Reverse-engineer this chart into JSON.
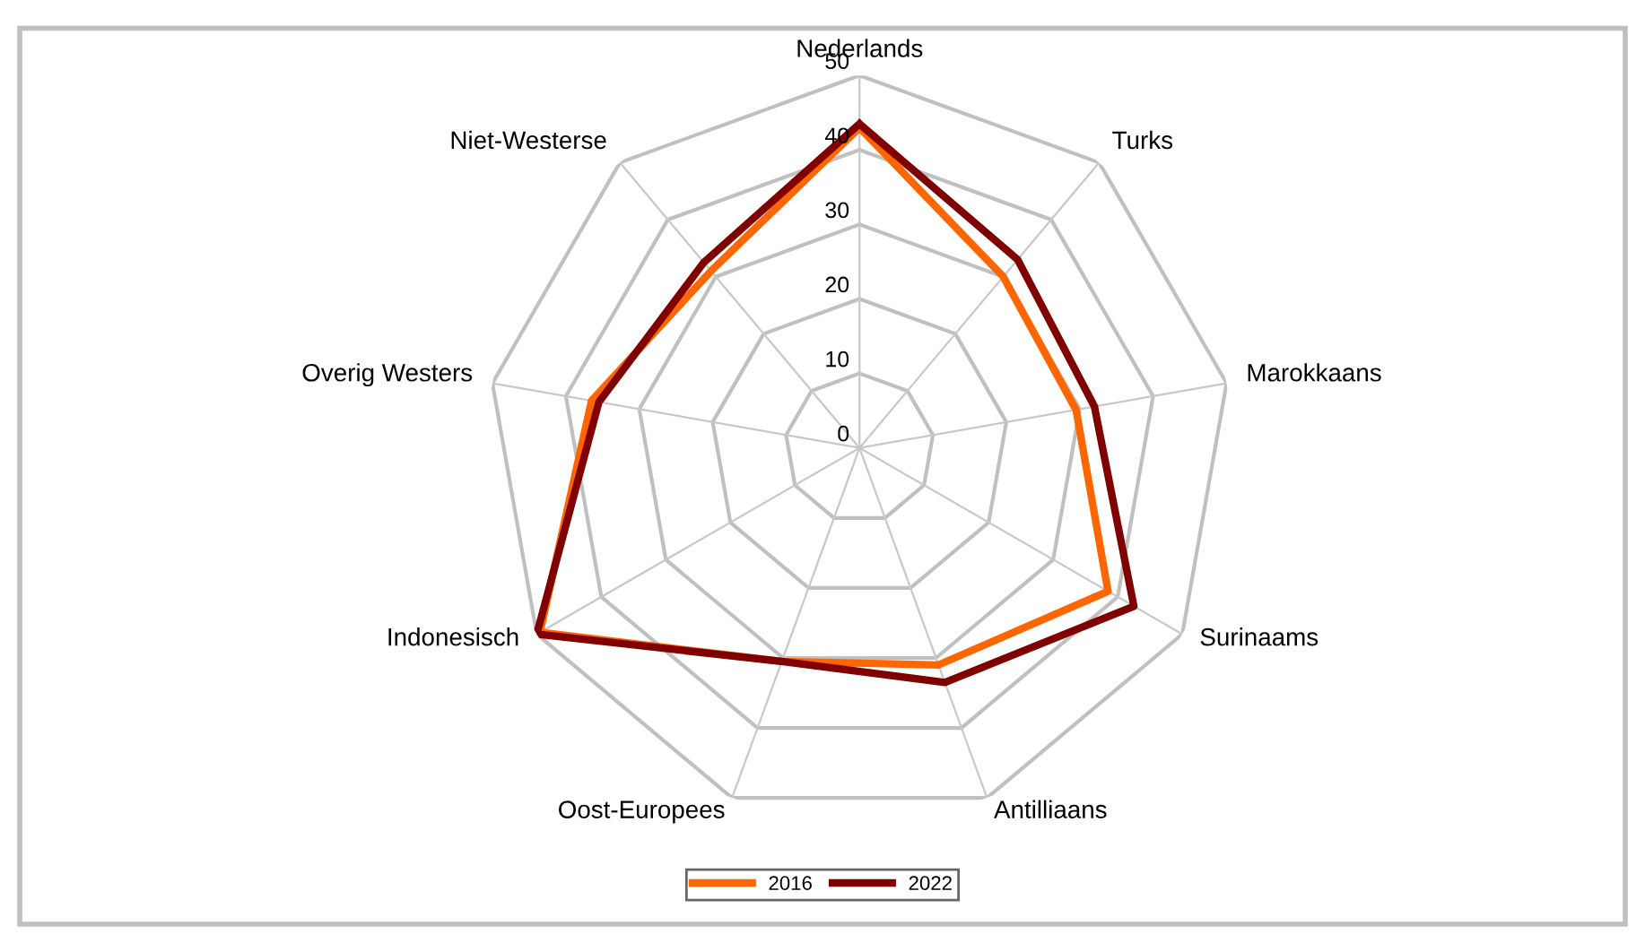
{
  "chart_data": {
    "type": "radar",
    "categories": [
      "Nederlands",
      "Turks",
      "Marokkaans",
      "Surinaams",
      "Antilliaans",
      "Oost-Europees",
      "Indonesisch",
      "Overig Westers",
      "Niet-Westerse"
    ],
    "series": [
      {
        "name": "2016",
        "color": "#ff6600",
        "values": [
          43,
          30,
          29.5,
          38.5,
          31,
          30.5,
          49.5,
          36.5,
          31
        ]
      },
      {
        "name": "2022",
        "color": "#800000",
        "values": [
          43.5,
          33,
          32,
          42.5,
          33.5,
          30.5,
          50,
          35.5,
          32.5
        ]
      }
    ],
    "ylim": [
      0,
      50
    ],
    "yticks": [
      0,
      10,
      20,
      30,
      40,
      50
    ],
    "grid": true,
    "legend": "bottom",
    "marker": "none",
    "line_style": "solid"
  }
}
